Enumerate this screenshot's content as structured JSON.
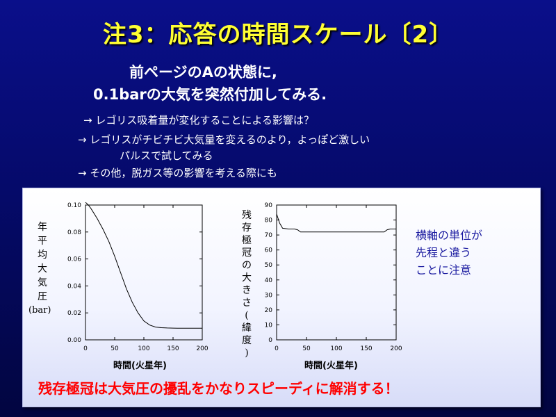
{
  "title": "注3：応答の時間スケール〔2〕",
  "intro": [
    "前ページのAの状態に,",
    "0.1barの大気を突然付加してみる."
  ],
  "bullets": [
    "→ レゴリス吸着量が変化することによる影響は？",
    "→  レゴリスがチビチビ大気量を変えるのより，よっぽど激しい",
    "パルスで試してみる",
    "→  その他，脱ガス等の影響を考える際にも"
  ],
  "note": [
    "横軸の単位が",
    "先程と違う",
    "ことに注意"
  ],
  "conclusion": "残存極冠は大気圧の擾乱をかなりスピーディに解消する！",
  "chart_data": [
    {
      "type": "line",
      "xlabel": "時間(火星年)",
      "ylabel": "年平均大気圧",
      "yunit": "(bar)",
      "xlim": [
        0,
        200
      ],
      "ylim": [
        0,
        0.1
      ],
      "xticks": [
        "0",
        "50",
        "100",
        "150",
        "200"
      ],
      "yticks": [
        "0.00",
        "0.02",
        "0.04",
        "0.06",
        "0.08",
        "0.10"
      ],
      "x": [
        0,
        5,
        10,
        20,
        30,
        40,
        50,
        60,
        70,
        80,
        90,
        100,
        110,
        120,
        130,
        140,
        150,
        160,
        170,
        180,
        190,
        200
      ],
      "y": [
        0.102,
        0.1,
        0.097,
        0.09,
        0.082,
        0.073,
        0.062,
        0.05,
        0.038,
        0.028,
        0.02,
        0.014,
        0.011,
        0.0095,
        0.009,
        0.0088,
        0.0087,
        0.0086,
        0.0086,
        0.0086,
        0.0086,
        0.0086
      ]
    },
    {
      "type": "line",
      "xlabel": "時間(火星年)",
      "ylabel": "残存極冠の大きさ(緯度)",
      "xlim": [
        0,
        200
      ],
      "ylim": [
        0,
        90
      ],
      "xticks": [
        "0",
        "50",
        "100",
        "150",
        "200"
      ],
      "yticks": [
        "0",
        "10",
        "20",
        "30",
        "40",
        "50",
        "60",
        "70",
        "80",
        "90"
      ],
      "x": [
        0,
        5,
        10,
        20,
        30,
        35,
        40,
        50,
        60,
        80,
        100,
        120,
        140,
        160,
        180,
        185,
        190,
        200
      ],
      "y": [
        84,
        78,
        74.5,
        74,
        74,
        73.5,
        72,
        72,
        72,
        72,
        72,
        72,
        72,
        72,
        72,
        73.5,
        74,
        74
      ]
    }
  ]
}
